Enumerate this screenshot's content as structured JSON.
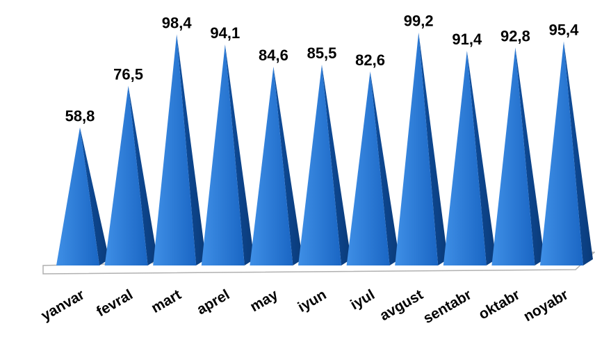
{
  "chart_data": {
    "type": "bar",
    "style": "3d-pyramid",
    "categories": [
      "yanvar",
      "fevral",
      "mart",
      "aprel",
      "may",
      "iyun",
      "iyul",
      "avgust",
      "sentabr",
      "oktabr",
      "noyabr"
    ],
    "values": [
      58.8,
      76.5,
      98.4,
      94.1,
      84.6,
      85.5,
      82.6,
      99.2,
      91.4,
      92.8,
      95.4
    ],
    "value_labels": [
      "58,8",
      "76,5",
      "98,4",
      "94,1",
      "84,6",
      "85,5",
      "82,6",
      "99,2",
      "91,4",
      "92,8",
      "95,4"
    ],
    "title": "",
    "xlabel": "",
    "ylabel": "",
    "ylim": [
      0,
      100
    ],
    "grid": false,
    "legend": "none",
    "colors": {
      "pyramid_front": "#1f6fce",
      "pyramid_side": "#0d4a99",
      "floor_stroke": "#b0b0b0"
    }
  }
}
